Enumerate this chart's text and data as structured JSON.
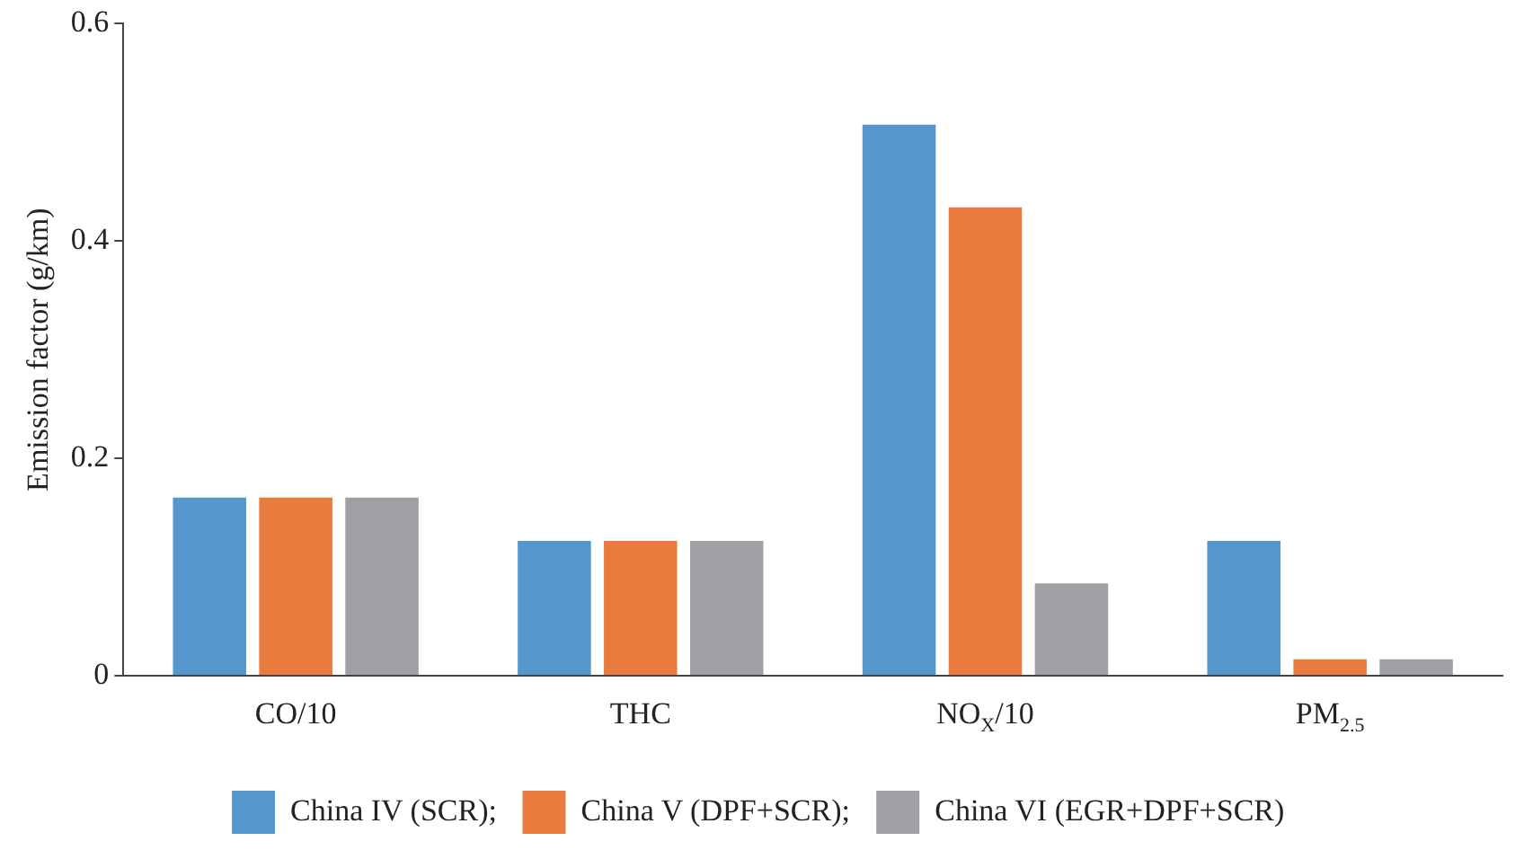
{
  "chart_data": {
    "type": "bar",
    "ylabel": "Emission factor (g/km)",
    "categories": [
      "CO/10",
      "THC",
      "NO$_{X}$/10",
      "PM$_{2.5}$"
    ],
    "series": [
      {
        "name": "China IV (SCR);",
        "color": "#5596cc",
        "values": [
          0.164,
          0.124,
          0.507,
          0.124
        ]
      },
      {
        "name": "China V (DPF+SCR);",
        "color": "#e97b3e",
        "values": [
          0.164,
          0.124,
          0.431,
          0.015
        ]
      },
      {
        "name": "China VI (EGR+DPF+SCR)",
        "color": "#a0a0a4",
        "values": [
          0.164,
          0.124,
          0.085,
          0.015
        ]
      }
    ],
    "ylim": [
      0,
      0.6
    ],
    "yticks": [
      0,
      0.2,
      0.4,
      0.6
    ],
    "grid": false,
    "legend": "bottom"
  }
}
